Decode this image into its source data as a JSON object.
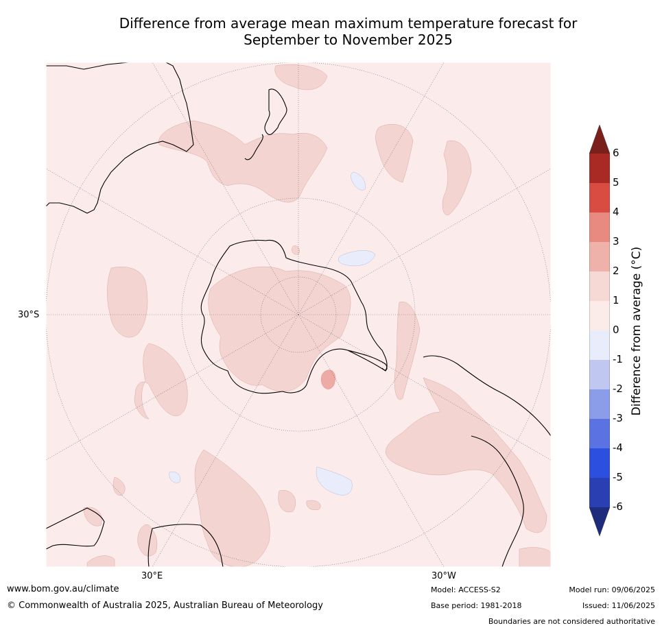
{
  "title_line1": "Difference from average mean maximum temperature forecast for",
  "title_line2": "September to November 2025",
  "lat_labels": {
    "lat_30s": "30°S"
  },
  "lon_labels": {
    "lon_30e": "30°E",
    "lon_30w": "30°W"
  },
  "footer": {
    "url": "www.bom.gov.au/climate",
    "copyright": "© Commonwealth of Australia 2025, Australian Bureau of Meteorology",
    "model": "Model: ACCESS-S2",
    "base_period": "Base period: 1981-2018",
    "model_run": "Model run: 09/06/2025",
    "issued": "Issued: 11/06/2025",
    "disclaimer": "Boundaries are not considered authoritative"
  },
  "colorbar": {
    "title": "Difference from average (°C)",
    "ticks": [
      "6",
      "5",
      "4",
      "3",
      "2",
      "1",
      "0",
      "-1",
      "-2",
      "-3",
      "-4",
      "-5",
      "-6"
    ],
    "colors_top_to_bottom": [
      "#7a1f1a",
      "#a92a24",
      "#d94c42",
      "#e98a80",
      "#efb2aa",
      "#f6d8d4",
      "#fbecea",
      "#e9edfb",
      "#c0c8f1",
      "#8b9ce9",
      "#5a72e2",
      "#2c4fe0",
      "#2a3fb2",
      "#1f2c7e"
    ]
  },
  "map_colors": {
    "background": "#fbeceb",
    "band_1_2": "#f3d4d1",
    "band_2_3": "#eeaaa4",
    "band_neg": "#e8ecfb"
  }
}
